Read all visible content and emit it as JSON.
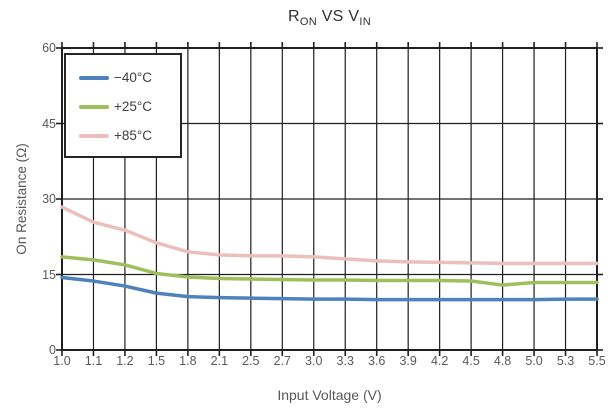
{
  "title_parts": {
    "r": "R",
    "r_sub": "ON",
    "mid": " VS V",
    "v_sub": "IN"
  },
  "chart_data": {
    "type": "line",
    "title": "RON VS VIN",
    "xlabel": "Input Voltage (V)",
    "ylabel": "On Resistance (Ω)",
    "x_tick_labels": [
      "1.0",
      "1.1",
      "1.2",
      "1.5",
      "1.8",
      "2.1",
      "2.5",
      "2.7",
      "3.0",
      "3.3",
      "3.6",
      "3.9",
      "4.2",
      "4.5",
      "4.8",
      "5.0",
      "5.3",
      "5.5"
    ],
    "y_tick_labels": [
      "0",
      "15",
      "30",
      "45",
      "60"
    ],
    "y_ticks": [
      0,
      15,
      30,
      45,
      60
    ],
    "ylim": [
      0,
      60
    ],
    "grid": true,
    "legend_position": "top-left",
    "series": [
      {
        "name": "−40°C",
        "color": "#4f81bd",
        "values": [
          14.4,
          13.7,
          12.7,
          11.3,
          10.6,
          10.4,
          10.3,
          10.2,
          10.1,
          10.1,
          10.0,
          10.0,
          10.0,
          10.0,
          10.0,
          10.0,
          10.1,
          10.1
        ]
      },
      {
        "name": "+25°C",
        "color": "#9fbe5c",
        "values": [
          18.5,
          17.9,
          16.9,
          15.2,
          14.5,
          14.2,
          14.1,
          14.0,
          13.9,
          13.9,
          13.8,
          13.8,
          13.8,
          13.7,
          12.9,
          13.4,
          13.4,
          13.4
        ]
      },
      {
        "name": "+85°C",
        "color": "#eabfbc",
        "values": [
          28.4,
          25.4,
          23.8,
          21.3,
          19.5,
          18.9,
          18.7,
          18.7,
          18.5,
          18.1,
          17.7,
          17.5,
          17.4,
          17.3,
          17.2,
          17.2,
          17.2,
          17.2
        ]
      }
    ],
    "style": {
      "grid_color": "#1f1f1f",
      "tick_text_color": "#595959",
      "line_width": 3.5
    }
  }
}
